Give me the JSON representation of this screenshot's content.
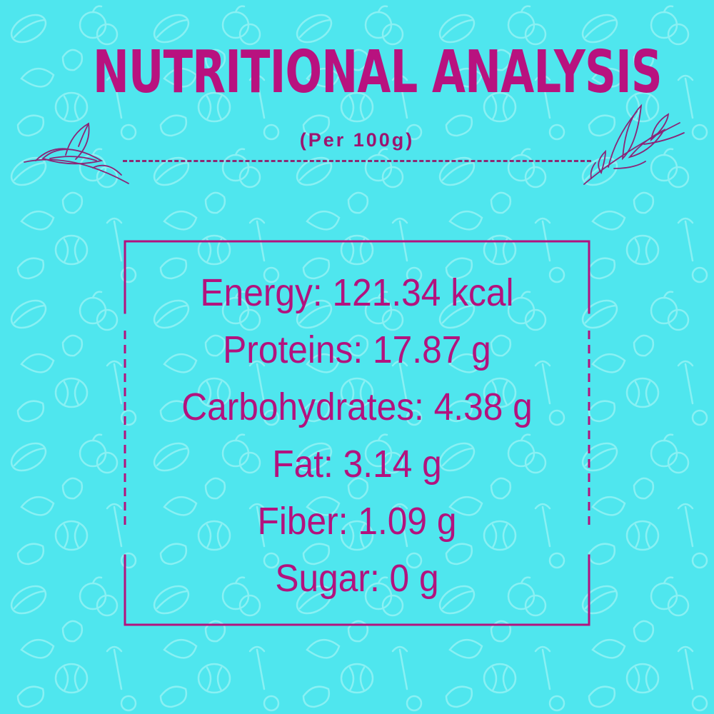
{
  "header": {
    "title": "NUTRITIONAL ANALYSIS",
    "subtitle": "(Per 100g)"
  },
  "nutrients": [
    {
      "label": "Energy",
      "value": "121.34 kcal"
    },
    {
      "label": "Proteins",
      "value": "17.87 g"
    },
    {
      "label": "Carbohydrates",
      "value": "4.38 g"
    },
    {
      "label": "Fat",
      "value": "3.14 g"
    },
    {
      "label": "Fiber",
      "value": "1.09 g"
    },
    {
      "label": "Sugar",
      "value": "0 g"
    }
  ],
  "colors": {
    "background": "#4fe6ee",
    "accent": "#b3127e",
    "pattern": "#8ff3f6"
  },
  "icons": {
    "decorations": [
      "leaf-sprig-left-icon",
      "leaf-sprig-right-icon",
      "vegetable-pattern"
    ]
  }
}
